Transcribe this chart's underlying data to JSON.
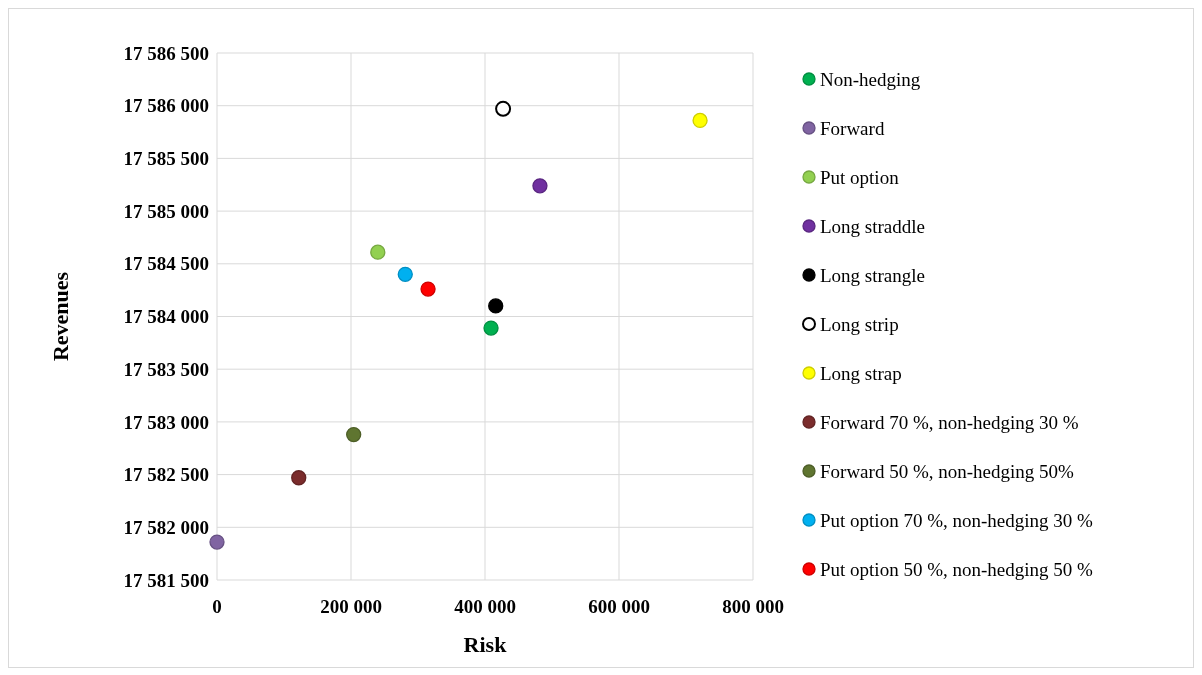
{
  "chart_data": {
    "type": "scatter",
    "xlabel": "Risk",
    "ylabel": "Revenues",
    "xlim": [
      0,
      800000
    ],
    "ylim": [
      17581500,
      17586500
    ],
    "xticks": [
      {
        "value": 0,
        "label": "0"
      },
      {
        "value": 200000,
        "label": "200 000"
      },
      {
        "value": 400000,
        "label": "400 000"
      },
      {
        "value": 600000,
        "label": "600 000"
      },
      {
        "value": 800000,
        "label": "800 000"
      }
    ],
    "yticks": [
      {
        "value": 17581500,
        "label": "17 581 500"
      },
      {
        "value": 17582000,
        "label": "17 582 000"
      },
      {
        "value": 17582500,
        "label": "17 582 500"
      },
      {
        "value": 17583000,
        "label": "17 583 000"
      },
      {
        "value": 17583500,
        "label": "17 583 500"
      },
      {
        "value": 17584000,
        "label": "17 584 000"
      },
      {
        "value": 17584500,
        "label": "17 584 500"
      },
      {
        "value": 17585000,
        "label": "17 585 000"
      },
      {
        "value": 17585500,
        "label": "17 585 500"
      },
      {
        "value": 17586000,
        "label": "17 586 000"
      },
      {
        "value": 17586500,
        "label": "17 586 500"
      }
    ],
    "grid": true,
    "legend": "right",
    "marker": "circle",
    "series": [
      {
        "name": "Non-hedging",
        "color": "#00b050",
        "x": [
          409000
        ],
        "values": [
          17583890
        ]
      },
      {
        "name": "Forward",
        "color": "#8064a2",
        "x": [
          0
        ],
        "values": [
          17581860
        ]
      },
      {
        "name": "Put option",
        "color": "#92d050",
        "x": [
          240000
        ],
        "values": [
          17584610
        ]
      },
      {
        "name": "Long straddle",
        "color": "#7030a0",
        "x": [
          482000
        ],
        "values": [
          17585240
        ]
      },
      {
        "name": "Long strangle",
        "color": "#000000",
        "x": [
          416000
        ],
        "values": [
          17584100
        ]
      },
      {
        "name": "Long strip",
        "color": "#ffffff",
        "x": [
          427000
        ],
        "values": [
          17585970
        ]
      },
      {
        "name": "Long strap",
        "color": "#ffff00",
        "x": [
          721000
        ],
        "values": [
          17585860
        ]
      },
      {
        "name": "Forward 70 %, non-hedging 30 %",
        "color": "#7b2c2c",
        "x": [
          122000
        ],
        "values": [
          17582470
        ]
      },
      {
        "name": "Forward 50 %, non-hedging 50%",
        "color": "#5f7530",
        "x": [
          204000
        ],
        "values": [
          17582880
        ]
      },
      {
        "name": "Put option 70 %, non-hedging 30 %",
        "color": "#00b0f0",
        "x": [
          281000
        ],
        "values": [
          17584400
        ]
      },
      {
        "name": "Put option 50 %, non-hedging 50 %",
        "color": "#ff0000",
        "x": [
          315000
        ],
        "values": [
          17584260
        ]
      }
    ]
  }
}
